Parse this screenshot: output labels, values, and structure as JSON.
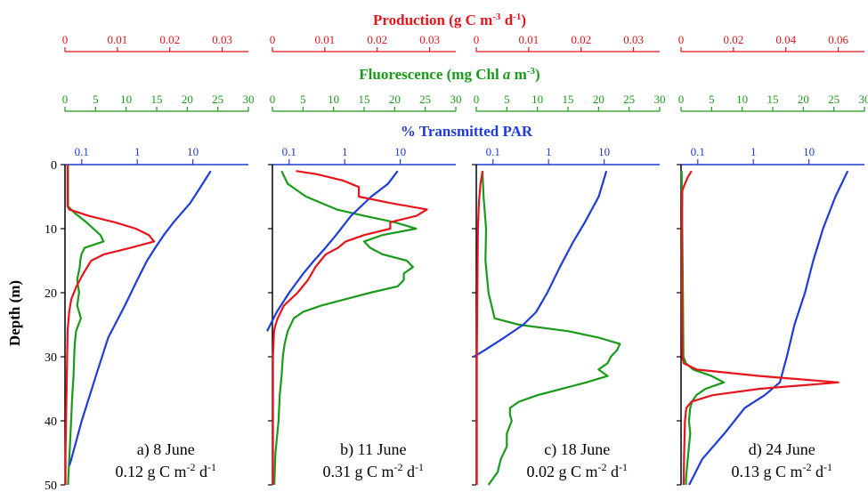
{
  "colors": {
    "production": "#e8141b",
    "fluorescence": "#1a9a1a",
    "par": "#1f3bd9",
    "axis": "#000000"
  },
  "header": {
    "production_label": "Production (g C m",
    "production_sup1": "-3",
    "production_mid": " d",
    "production_sup2": "-1",
    "production_end": ")",
    "fluorescence_label": "Fluorescence (mg Chl ",
    "fluorescence_italic": "a",
    "fluorescence_mid": " m",
    "fluorescence_sup": "-3",
    "fluorescence_end": ")",
    "par_label": "% Transmitted PAR"
  },
  "y_axis": {
    "label": "Depth (m)",
    "ticks": [
      "0",
      "10",
      "20",
      "30",
      "40",
      "50"
    ]
  },
  "chart_data": [
    {
      "type": "line",
      "title": "a) 8 June",
      "subtitle_prefix": "0.12 g C m",
      "subtitle_sup1": "-2",
      "subtitle_mid": " d",
      "subtitle_sup2": "-1",
      "ylabel": "Depth (m)",
      "ylim": [
        0,
        50
      ],
      "production_axis": {
        "range": [
          0,
          0.035
        ],
        "ticks": [
          "0",
          "0.01",
          "0.02",
          "0.03"
        ],
        "tick_values": [
          0,
          0.01,
          0.02,
          0.03
        ]
      },
      "fluorescence_axis": {
        "range": [
          0,
          30
        ],
        "ticks": [
          "0",
          "5",
          "10",
          "15",
          "20",
          "25",
          "30"
        ],
        "tick_values": [
          0,
          5,
          10,
          15,
          20,
          25,
          30
        ]
      },
      "par_axis": {
        "scale": "log",
        "range": [
          0.05,
          100
        ],
        "ticks": [
          "0.1",
          "1",
          "10"
        ],
        "tick_values": [
          0.1,
          1,
          10
        ]
      },
      "series": [
        {
          "name": "Production",
          "depth": [
            0,
            6.5,
            7,
            8,
            9,
            10,
            11,
            12,
            13,
            14,
            15,
            17,
            19,
            21,
            23,
            26,
            30,
            35,
            40,
            45,
            50
          ],
          "values": [
            0.0005,
            0.0005,
            0.0008,
            0.0045,
            0.0095,
            0.0135,
            0.016,
            0.017,
            0.0125,
            0.0075,
            0.005,
            0.0035,
            0.0022,
            0.0012,
            0.0008,
            0.0005,
            0.0004,
            0.0003,
            0.0002,
            0.0001,
            0.0001
          ]
        },
        {
          "name": "Fluorescence",
          "depth": [
            0,
            6.5,
            7.5,
            9,
            11,
            12,
            13,
            14,
            15,
            16,
            18,
            20,
            22,
            24,
            26,
            28,
            30,
            33,
            36,
            40,
            44,
            48,
            50
          ],
          "values": [
            0.5,
            0.5,
            1.5,
            3.5,
            5.8,
            6.3,
            3.2,
            2.7,
            2.5,
            2.4,
            2,
            2.3,
            2,
            2.6,
            1.8,
            1.6,
            1.5,
            1.4,
            1.2,
            1,
            0.8,
            0.6,
            0.5
          ]
        },
        {
          "name": "PAR",
          "depth": [
            1,
            3,
            6,
            9,
            11,
            13,
            15,
            18,
            22,
            27,
            33,
            40,
            46,
            47
          ],
          "values": [
            21,
            15,
            9,
            4.5,
            3,
            2.1,
            1.5,
            1,
            0.6,
            0.3,
            0.18,
            0.1,
            0.065,
            0.06
          ]
        }
      ]
    },
    {
      "type": "line",
      "title": "b) 11 June",
      "subtitle_prefix": "0.31 g C m",
      "subtitle_sup1": "-2",
      "subtitle_mid": " d",
      "subtitle_sup2": "-1",
      "ylabel": "Depth (m)",
      "ylim": [
        0,
        50
      ],
      "production_axis": {
        "range": [
          0,
          0.035
        ],
        "ticks": [
          "0",
          "0.01",
          "0.02",
          "0.03"
        ],
        "tick_values": [
          0,
          0.01,
          0.02,
          0.03
        ]
      },
      "fluorescence_axis": {
        "range": [
          0,
          30
        ],
        "ticks": [
          "0",
          "5",
          "10",
          "15",
          "20",
          "25",
          "30"
        ],
        "tick_values": [
          0,
          5,
          10,
          15,
          20,
          25,
          30
        ]
      },
      "par_axis": {
        "scale": "log",
        "range": [
          0.05,
          100
        ],
        "ticks": [
          "0.1",
          "1",
          "10"
        ],
        "tick_values": [
          0.1,
          1,
          10
        ]
      },
      "series": [
        {
          "name": "Production",
          "depth": [
            1,
            1.5,
            2.5,
            3.5,
            5,
            6,
            7,
            8,
            9,
            10,
            11,
            12,
            13,
            14,
            15,
            16,
            18,
            20,
            22,
            24,
            25,
            26,
            30,
            35,
            40,
            45,
            50
          ],
          "values": [
            0.0045,
            0.0085,
            0.0135,
            0.0165,
            0.0165,
            0.0225,
            0.0295,
            0.0275,
            0.0225,
            0.0225,
            0.0175,
            0.014,
            0.0125,
            0.0102,
            0.0092,
            0.0082,
            0.0068,
            0.0048,
            0.0022,
            0.001,
            0.0006,
            0.0003,
            0.0001,
            0.0001,
            0.0001,
            0.0001,
            0.0001
          ]
        },
        {
          "name": "Fluorescence",
          "depth": [
            1,
            3,
            5,
            7,
            8,
            9,
            10,
            11,
            12,
            13,
            14,
            15,
            16,
            17,
            18,
            19,
            20,
            21,
            22,
            23,
            24,
            26,
            28,
            30,
            33,
            36,
            40,
            45,
            50
          ],
          "values": [
            1.5,
            2.5,
            5.5,
            10.5,
            15,
            20,
            23.5,
            18,
            15,
            16,
            18,
            22,
            23,
            21.5,
            21.5,
            20.5,
            16,
            12,
            8,
            5,
            3.5,
            2.5,
            2,
            1.7,
            1.5,
            1.2,
            1,
            0.5,
            0.3
          ]
        },
        {
          "name": "PAR",
          "depth": [
            1,
            3,
            5,
            8,
            11,
            13,
            15,
            17,
            20,
            23,
            26
          ],
          "values": [
            9,
            6,
            3,
            1.3,
            0.7,
            0.45,
            0.28,
            0.18,
            0.1,
            0.06,
            0.04
          ]
        }
      ]
    },
    {
      "type": "line",
      "title": "c) 18 June",
      "subtitle_prefix": "0.02 g C m",
      "subtitle_sup1": "-2",
      "subtitle_mid": " d",
      "subtitle_sup2": "-1",
      "ylabel": "Depth (m)",
      "ylim": [
        0,
        50
      ],
      "production_axis": {
        "range": [
          0,
          0.035
        ],
        "ticks": [
          "0",
          "0.01",
          "0.02",
          "0.03"
        ],
        "tick_values": [
          0,
          0.01,
          0.02,
          0.03
        ]
      },
      "fluorescence_axis": {
        "range": [
          0,
          30
        ],
        "ticks": [
          "0",
          "5",
          "10",
          "15",
          "20",
          "25",
          "30"
        ],
        "tick_values": [
          0,
          5,
          10,
          15,
          20,
          25,
          30
        ]
      },
      "par_axis": {
        "scale": "log",
        "range": [
          0.05,
          100
        ],
        "ticks": [
          "0.1",
          "1",
          "10"
        ],
        "tick_values": [
          0.1,
          1,
          10
        ]
      },
      "series": [
        {
          "name": "Production",
          "depth": [
            1,
            3,
            6,
            10,
            20,
            30,
            40,
            50
          ],
          "values": [
            0.0012,
            0.0008,
            0.0005,
            0.0003,
            0.0002,
            0.0001,
            0.0001,
            0.0001
          ]
        },
        {
          "name": "Fluorescence",
          "depth": [
            1,
            5,
            10,
            15,
            20,
            24,
            25,
            26,
            27,
            28,
            29,
            30,
            31,
            32,
            33,
            34,
            35,
            36,
            37,
            38,
            39,
            40,
            42,
            44,
            46,
            48,
            50
          ],
          "values": [
            1,
            1.2,
            1.6,
            1.5,
            2,
            3,
            7,
            15,
            20,
            23.5,
            23,
            22,
            21.5,
            20,
            21.5,
            18,
            14,
            10,
            7,
            5.5,
            5.5,
            5.8,
            5,
            5,
            4,
            3.5,
            2
          ]
        },
        {
          "name": "PAR",
          "depth": [
            1,
            5,
            9,
            12,
            16,
            20,
            23,
            25,
            27,
            29,
            30
          ],
          "values": [
            11,
            8,
            4.5,
            2.8,
            1.6,
            0.95,
            0.6,
            0.35,
            0.16,
            0.07,
            0.045
          ]
        }
      ]
    },
    {
      "type": "line",
      "title": "d) 24 June",
      "subtitle_prefix": "0.13 g C m",
      "subtitle_sup1": "-2",
      "subtitle_mid": " d",
      "subtitle_sup2": "-1",
      "ylabel": "Depth (m)",
      "ylim": [
        0,
        50
      ],
      "production_axis": {
        "range": [
          0,
          0.07
        ],
        "ticks": [
          "0",
          "0.02",
          "0.04",
          "0.06"
        ],
        "tick_values": [
          0,
          0.02,
          0.04,
          0.06
        ]
      },
      "fluorescence_axis": {
        "range": [
          0,
          30
        ],
        "ticks": [
          "0",
          "5",
          "10",
          "15",
          "20",
          "25",
          "30"
        ],
        "tick_values": [
          0,
          5,
          10,
          15,
          20,
          25,
          30
        ]
      },
      "par_axis": {
        "scale": "log",
        "range": [
          0.05,
          100
        ],
        "ticks": [
          "0.1",
          "1",
          "10"
        ],
        "tick_values": [
          0.1,
          1,
          10
        ]
      },
      "series": [
        {
          "name": "Production",
          "depth": [
            1,
            2,
            3,
            4,
            10,
            20,
            30,
            31,
            32,
            33,
            34,
            35,
            36,
            37,
            38,
            40,
            45,
            50
          ],
          "values": [
            0.004,
            0.0025,
            0.0015,
            0.0005,
            0.0003,
            0.0003,
            0.0005,
            0.001,
            0.006,
            0.03,
            0.06,
            0.03,
            0.012,
            0.004,
            0.002,
            0.0015,
            0.0012,
            0.001
          ]
        },
        {
          "name": "Fluorescence",
          "depth": [
            1,
            10,
            20,
            30,
            31,
            32,
            33,
            34,
            35,
            36,
            37,
            38,
            40,
            42,
            45,
            47,
            49,
            50
          ],
          "values": [
            0.1,
            0.2,
            0.3,
            0.4,
            0.8,
            2,
            5,
            7,
            4,
            2.5,
            1.8,
            1.5,
            1.3,
            1.5,
            1.2,
            1,
            0.8,
            0.8
          ]
        },
        {
          "name": "PAR",
          "depth": [
            1,
            5,
            10,
            15,
            20,
            25,
            30,
            34,
            36,
            38,
            42,
            46,
            50
          ],
          "values": [
            50,
            30,
            18,
            12,
            8.5,
            5.5,
            4,
            3,
            1.6,
            0.7,
            0.3,
            0.12,
            0.07
          ]
        }
      ]
    }
  ]
}
